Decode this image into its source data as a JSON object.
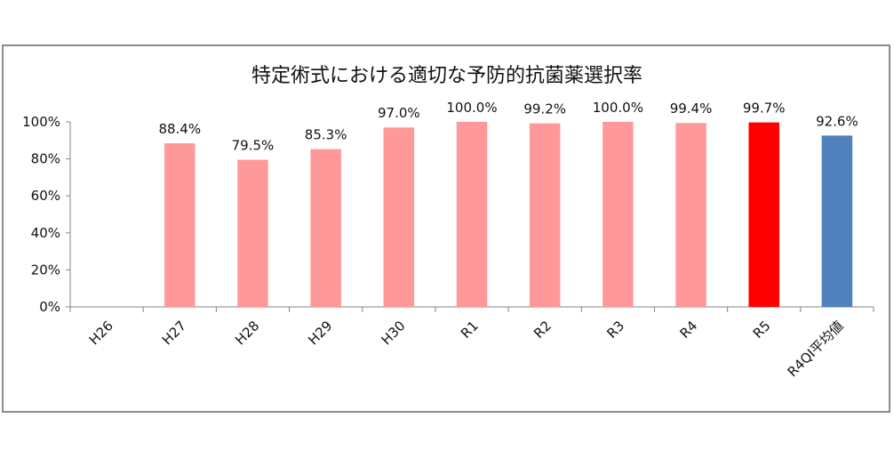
{
  "chart_data": {
    "type": "bar",
    "title": "特定術式における適切な予防的抗菌薬選択率",
    "categories": [
      "H26",
      "H27",
      "H28",
      "H29",
      "H30",
      "R1",
      "R2",
      "R3",
      "R4",
      "R5",
      "R4QI平均値"
    ],
    "values": [
      null,
      88.4,
      79.5,
      85.3,
      97.0,
      100.0,
      99.2,
      100.0,
      99.4,
      99.7,
      92.6
    ],
    "data_labels": [
      "",
      "88.4%",
      "79.5%",
      "85.3%",
      "97.0%",
      "100.0%",
      "99.2%",
      "100.0%",
      "99.4%",
      "99.7%",
      "92.6%"
    ],
    "bar_colors": [
      "#ff9999",
      "#ff9999",
      "#ff9999",
      "#ff9999",
      "#ff9999",
      "#ff9999",
      "#ff9999",
      "#ff9999",
      "#ff9999",
      "#ff0000",
      "#4f81bd"
    ],
    "y_ticks": [
      0,
      20,
      40,
      60,
      80,
      100
    ],
    "y_tick_labels": [
      "0%",
      "20%",
      "40%",
      "60%",
      "80%",
      "100%"
    ],
    "ylim": [
      0,
      100
    ],
    "xlabel": "",
    "ylabel": "",
    "grid": false,
    "legend": "none"
  }
}
